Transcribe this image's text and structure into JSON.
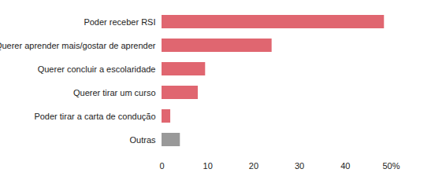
{
  "chart_data": {
    "type": "bar",
    "orientation": "horizontal",
    "categories": [
      "Poder receber RSI",
      "Querer aprender mais/gostar de aprender",
      "Querer concluir a escolaridade",
      "Querer tirar um curso",
      "Poder tirar a carta de condução",
      "Outras"
    ],
    "values": [
      48.5,
      24,
      9.5,
      7.9,
      1.9,
      4
    ],
    "colors": [
      "#e06670",
      "#e06670",
      "#e06670",
      "#e06670",
      "#e06670",
      "#999999"
    ],
    "xlim": [
      0,
      50
    ],
    "xticks": [
      0,
      10,
      20,
      30,
      40,
      {
        "value": 50,
        "label": "50%"
      }
    ],
    "grid": false
  }
}
